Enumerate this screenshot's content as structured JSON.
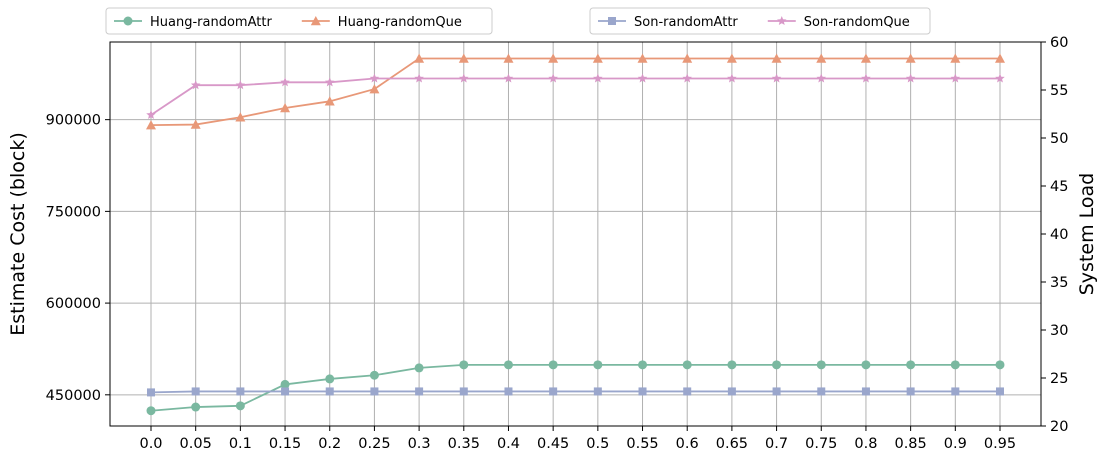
{
  "chart_data": {
    "type": "line",
    "x": [
      "0.0",
      "0.05",
      "0.1",
      "0.15",
      "0.2",
      "0.25",
      "0.3",
      "0.35",
      "0.4",
      "0.45",
      "0.5",
      "0.55",
      "0.6",
      "0.65",
      "0.7",
      "0.75",
      "0.8",
      "0.85",
      "0.9",
      "0.95"
    ],
    "ylabel": "Estimate Cost (block)",
    "ylabel_right": "System Load",
    "ylim": [
      399000,
      1027000
    ],
    "ylim_right": [
      20,
      60
    ],
    "yticks": [
      450000,
      600000,
      750000,
      900000
    ],
    "yticks_right": [
      20,
      25,
      30,
      35,
      40,
      45,
      50,
      55,
      60
    ],
    "grid": true,
    "legend_left": [
      "Huang-randomAttr",
      "Huang-randomQue"
    ],
    "legend_right": [
      "Son-randomAttr",
      "Son-randomQue"
    ],
    "series": [
      {
        "name": "Huang-randomAttr",
        "axis": "left",
        "color": "#7ab8a0",
        "marker": "circle",
        "values": [
          424000,
          430000,
          432000,
          467000,
          476000,
          482000,
          494000,
          499000,
          499000,
          499000,
          499000,
          499000,
          499000,
          499000,
          499000,
          499000,
          499000,
          499000,
          499000,
          499000
        ]
      },
      {
        "name": "Huang-randomQue",
        "axis": "left",
        "color": "#e89878",
        "marker": "triangle",
        "values": [
          891000,
          892000,
          904000,
          919000,
          930000,
          950000,
          1000000,
          1000000,
          1000000,
          1000000,
          1000000,
          1000000,
          1000000,
          1000000,
          1000000,
          1000000,
          1000000,
          1000000,
          1000000,
          1000000
        ]
      },
      {
        "name": "Son-randomAttr",
        "axis": "right",
        "color": "#9aa6cc",
        "marker": "square",
        "values": [
          23.5,
          23.6,
          23.6,
          23.6,
          23.6,
          23.6,
          23.6,
          23.6,
          23.6,
          23.6,
          23.6,
          23.6,
          23.6,
          23.6,
          23.6,
          23.6,
          23.6,
          23.6,
          23.6,
          23.6
        ]
      },
      {
        "name": "Son-randomQue",
        "axis": "right",
        "color": "#d898c8",
        "marker": "star",
        "values": [
          52.4,
          55.5,
          55.5,
          55.8,
          55.8,
          56.2,
          56.2,
          56.2,
          56.2,
          56.2,
          56.2,
          56.2,
          56.2,
          56.2,
          56.2,
          56.2,
          56.2,
          56.2,
          56.2,
          56.2
        ]
      }
    ]
  }
}
